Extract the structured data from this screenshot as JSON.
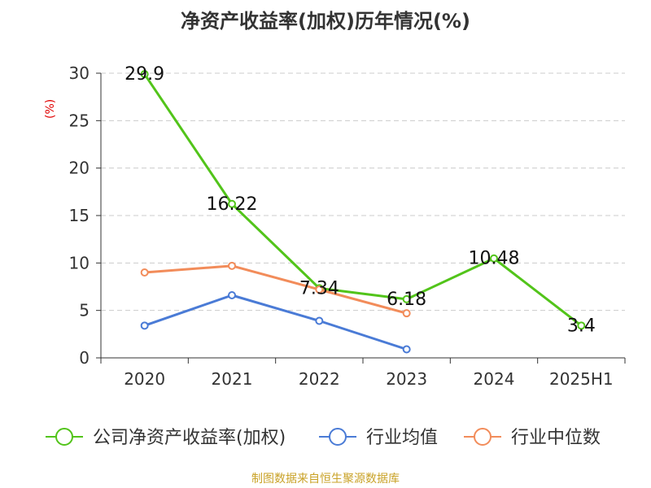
{
  "chart_data": {
    "type": "line",
    "title": "净资产收益率(加权)历年情况(%)",
    "xlabel": "",
    "ylabel": "(%)",
    "categories": [
      "2020",
      "2021",
      "2022",
      "2023",
      "2024",
      "2025H1"
    ],
    "ylim": [
      0,
      30
    ],
    "yticks": [
      0,
      5,
      10,
      15,
      20,
      25,
      30
    ],
    "grid": true,
    "legend_position": "bottom",
    "series": [
      {
        "name": "公司净资产收益率(加权)",
        "color": "#52c41a",
        "values": [
          29.9,
          16.22,
          7.34,
          6.18,
          10.48,
          3.4
        ],
        "labels": [
          "29.9",
          "16.22",
          "7.34",
          "6.18",
          "10.48",
          "3.4"
        ]
      },
      {
        "name": "行业均值",
        "color": "#4a7bd6",
        "values": [
          3.4,
          6.6,
          3.9,
          0.9,
          null,
          null
        ]
      },
      {
        "name": "行业中位数",
        "color": "#f28c5a",
        "values": [
          9.0,
          9.7,
          7.2,
          4.7,
          null,
          null
        ]
      }
    ]
  },
  "footer": {
    "source": "制图数据来自恒生聚源数据库"
  }
}
